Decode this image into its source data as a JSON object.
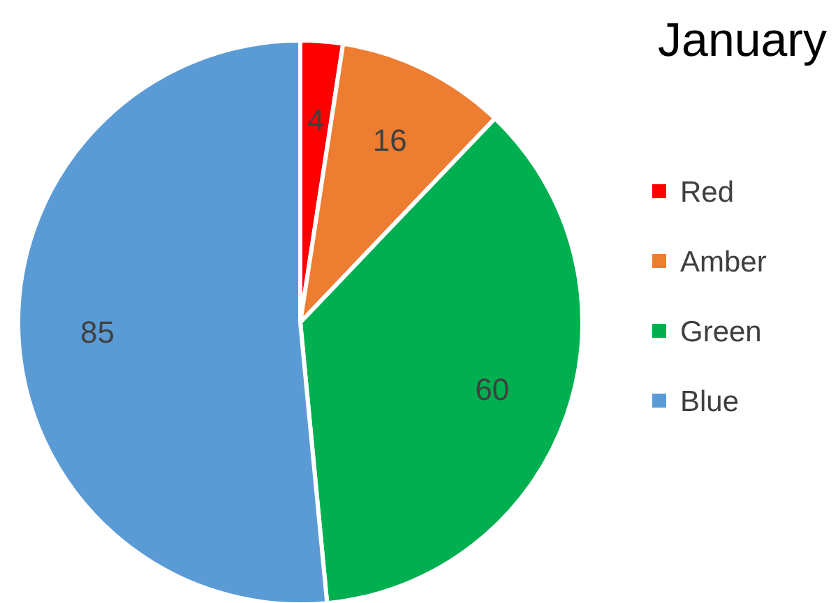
{
  "chart_data": {
    "type": "pie",
    "title": "January",
    "categories": [
      "Red",
      "Amber",
      "Green",
      "Blue"
    ],
    "values": [
      4,
      16,
      60,
      85
    ],
    "colors": [
      "#ff0000",
      "#ed7d31",
      "#00b050",
      "#5b9bd5"
    ],
    "data_labels": true,
    "legend": "right"
  }
}
